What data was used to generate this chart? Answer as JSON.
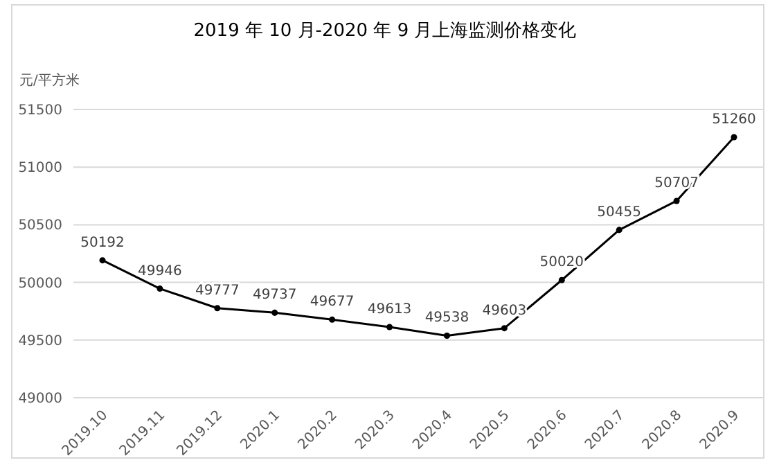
{
  "chart_data": {
    "type": "line",
    "title": "2019 年 10 月-2020 年 9 月上海监测价格变化",
    "ylabel": "元/平方米",
    "categories": [
      "2019.10",
      "2019.11",
      "2019.12",
      "2020.1",
      "2020.2",
      "2020.3",
      "2020.4",
      "2020.5",
      "2020.6",
      "2020.7",
      "2020.8",
      "2020.9"
    ],
    "values": [
      50192,
      49946,
      49777,
      49737,
      49677,
      49613,
      49538,
      49603,
      50020,
      50455,
      50707,
      51260
    ],
    "color": "#000000",
    "marker": "circle",
    "data_labels": true,
    "grid": "y",
    "ylim": [
      49000,
      51500
    ],
    "yticks": [
      49000,
      49500,
      50000,
      50500,
      51000,
      51500
    ]
  }
}
